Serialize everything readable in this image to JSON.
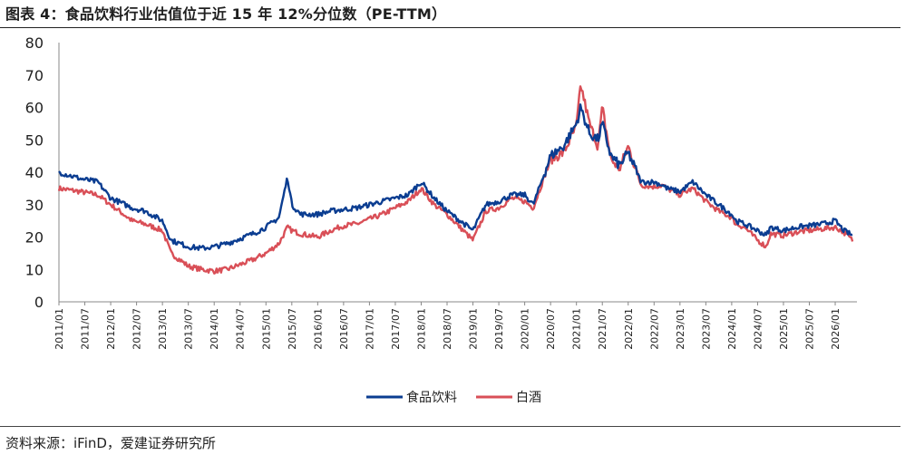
{
  "title": "图表 4：食品饮料行业估值位于近 15 年 12%分位数（PE-TTM）",
  "source": "资料来源：iFinD，爱建证券研究所",
  "chart_data": {
    "type": "line",
    "ylim": [
      0,
      80
    ],
    "yticks": [
      0,
      10,
      20,
      30,
      40,
      50,
      60,
      70,
      80
    ],
    "x_tick_labels": [
      "2011/01",
      "2011/07",
      "2012/01",
      "2012/07",
      "2013/01",
      "2013/07",
      "2014/01",
      "2014/07",
      "2015/01",
      "2015/07",
      "2016/01",
      "2016/07",
      "2017/01",
      "2017/07",
      "2018/01",
      "2018/07",
      "2019/01",
      "2019/07",
      "2020/01",
      "2020/07",
      "2021/01",
      "2021/07",
      "2022/01",
      "2022/07",
      "2023/01",
      "2023/07",
      "2024/01",
      "2024/07",
      "2025/01",
      "2025/07",
      "2026/01"
    ],
    "x_dates": [
      "2011-01",
      "2011-06",
      "2011-10",
      "2012-01",
      "2012-06",
      "2012-09",
      "2013-01",
      "2013-03",
      "2013-07",
      "2013-10",
      "2014-01",
      "2014-04",
      "2014-07",
      "2014-10",
      "2015-01",
      "2015-04",
      "2015-06",
      "2015-07",
      "2015-09",
      "2016-01",
      "2016-04",
      "2016-07",
      "2016-10",
      "2017-01",
      "2017-04",
      "2017-07",
      "2017-10",
      "2018-01",
      "2018-04",
      "2018-07",
      "2018-10",
      "2019-01",
      "2019-04",
      "2019-07",
      "2019-10",
      "2020-01",
      "2020-03",
      "2020-07",
      "2020-10",
      "2021-01",
      "2021-02",
      "2021-04",
      "2021-06",
      "2021-07",
      "2021-09",
      "2021-11",
      "2022-01",
      "2022-04",
      "2022-07",
      "2022-09",
      "2022-10",
      "2023-01",
      "2023-04",
      "2023-07",
      "2023-10",
      "2024-01",
      "2024-02",
      "2024-04",
      "2024-07",
      "2024-09",
      "2024-10",
      "2025-01",
      "2025-04",
      "2025-07",
      "2025-10",
      "2026-01",
      "2026-03",
      "2026-05"
    ],
    "series": [
      {
        "name": "食品饮料",
        "color": "#0b3d91",
        "values": [
          40,
          38,
          37,
          32,
          29,
          28,
          25,
          19,
          17,
          16.5,
          17,
          18,
          19.5,
          21,
          23,
          26,
          38.5,
          30,
          27,
          27,
          28,
          28.5,
          29,
          30,
          31,
          32,
          33,
          37,
          32,
          28,
          25,
          22,
          30,
          31,
          33,
          33,
          30,
          45,
          48,
          55,
          60,
          52,
          50,
          55,
          45,
          42,
          46,
          37,
          37,
          36,
          35,
          34,
          37,
          33,
          30,
          27,
          25,
          24,
          22,
          20.5,
          23,
          22,
          23,
          23.5,
          24,
          25,
          22,
          20.5
        ]
      },
      {
        "name": "白酒",
        "color": "#d94f57",
        "values": [
          35,
          34,
          33,
          30,
          25,
          24,
          22,
          15,
          11,
          10,
          9.5,
          10,
          11.5,
          13,
          15,
          18,
          23,
          22,
          21,
          20,
          22,
          23.5,
          24,
          25.5,
          27,
          29,
          31,
          35,
          30,
          27,
          23,
          19,
          28,
          29,
          32,
          31,
          29,
          44,
          46,
          54,
          67,
          55,
          48,
          60,
          44,
          41,
          48,
          36,
          35.5,
          36,
          35,
          33,
          35,
          31,
          28,
          26,
          24,
          23,
          19,
          17,
          21,
          20.5,
          21.5,
          22,
          22.5,
          23,
          21.5,
          19
        ]
      }
    ],
    "legend": [
      "食品饮料",
      "白酒"
    ],
    "legend_position": "bottom-center",
    "grid": false
  }
}
